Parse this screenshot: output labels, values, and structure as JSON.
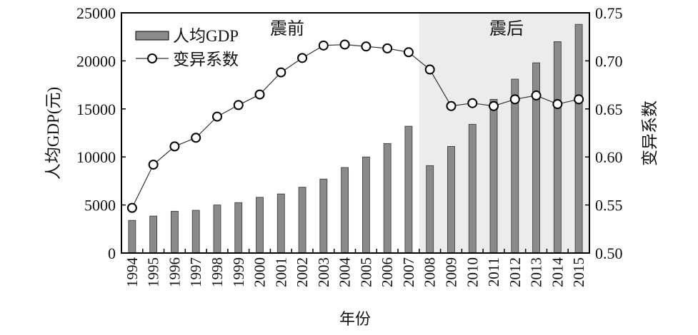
{
  "chart_data": {
    "type": "bar+line",
    "categories": [
      "1994",
      "1995",
      "1996",
      "1997",
      "1998",
      "1999",
      "2000",
      "2001",
      "2002",
      "2003",
      "2004",
      "2005",
      "2006",
      "2007",
      "2008",
      "2009",
      "2010",
      "2011",
      "2012",
      "2013",
      "2014",
      "2015"
    ],
    "series": [
      {
        "name": "人均GDP",
        "axis": "left",
        "type": "bar",
        "values": [
          3400,
          3850,
          4350,
          4450,
          5000,
          5250,
          5800,
          6150,
          6850,
          7700,
          8900,
          10000,
          11400,
          13200,
          9100,
          11100,
          13400,
          16000,
          18100,
          19800,
          22000,
          23800
        ]
      },
      {
        "name": "变异系数",
        "axis": "right",
        "type": "line",
        "values": [
          0.547,
          0.592,
          0.611,
          0.62,
          0.642,
          0.654,
          0.665,
          0.688,
          0.703,
          0.716,
          0.717,
          0.715,
          0.713,
          0.709,
          0.691,
          0.653,
          0.656,
          0.653,
          0.66,
          0.664,
          0.655,
          0.66
        ]
      }
    ],
    "xlabel": "年份",
    "ylabel": "人均GDP(元)",
    "y2label": "变异系数",
    "ylim": [
      0,
      25000
    ],
    "yticks": [
      "0",
      "5000",
      "10000",
      "15000",
      "20000",
      "25000"
    ],
    "y2lim": [
      0.5,
      0.75
    ],
    "y2ticks": [
      "0.50",
      "0.55",
      "0.60",
      "0.65",
      "0.70",
      "0.75"
    ],
    "annotations": {
      "before": "震前",
      "after": "震后"
    },
    "shaded_from_category": "2008",
    "legend_position": "top-left",
    "colors": {
      "bar": "#8a8a8a",
      "shade": "#ececec",
      "line": "#333333"
    }
  }
}
